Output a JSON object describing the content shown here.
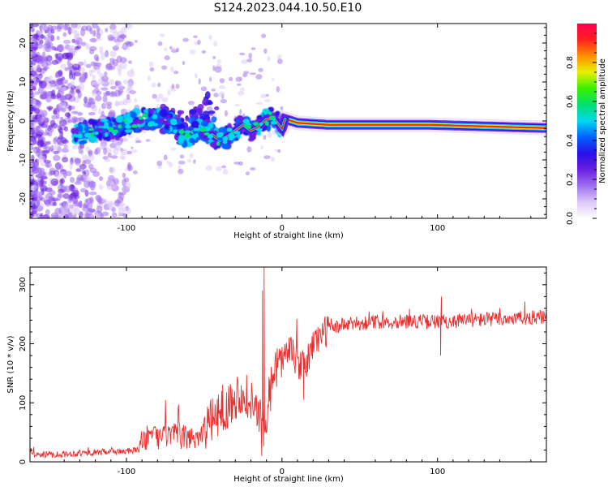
{
  "title": "S124.2023.044.10.50.E10",
  "chart_data": [
    {
      "type": "heatmap",
      "xlabel": "Height of straight line (km)",
      "ylabel": "Frequency (Hz)",
      "xlim": [
        -162,
        170
      ],
      "ylim": [
        -25,
        25
      ],
      "xticks": [
        -100,
        0,
        100
      ],
      "yticks": [
        -20,
        -10,
        0,
        10,
        20
      ],
      "colorbar": {
        "label": "Normalized spectral amplitude",
        "range": [
          0,
          1
        ],
        "ticks": [
          0.0,
          0.2,
          0.4,
          0.6,
          0.8
        ],
        "colors": [
          "#ffffff",
          "#dcc8f8",
          "#a070f0",
          "#6a1fe0",
          "#2a10e8",
          "#0060ff",
          "#00d8f0",
          "#00e070",
          "#38f000",
          "#e8f000",
          "#ff9000",
          "#ff2020",
          "#ff0050"
        ]
      },
      "ridge": [
        {
          "x": -133,
          "y": -3.5
        },
        {
          "x": -120,
          "y": -2.5
        },
        {
          "x": -110,
          "y": -2.0
        },
        {
          "x": -100,
          "y": -1.0
        },
        {
          "x": -90,
          "y": 0.5
        },
        {
          "x": -80,
          "y": 0.5
        },
        {
          "x": -70,
          "y": -1.0
        },
        {
          "x": -62,
          "y": -4.5
        },
        {
          "x": -50,
          "y": -2.0
        },
        {
          "x": -40,
          "y": -5.0
        },
        {
          "x": -35,
          "y": -4.0
        },
        {
          "x": -30,
          "y": -2.5
        },
        {
          "x": -25,
          "y": -1.0
        },
        {
          "x": -20,
          "y": -2.5
        },
        {
          "x": -15,
          "y": -1.5
        },
        {
          "x": -10,
          "y": 0.5
        },
        {
          "x": -5,
          "y": 0.5
        },
        {
          "x": 0,
          "y": -2.0
        },
        {
          "x": 2,
          "y": 0.5
        },
        {
          "x": 10,
          "y": -0.5
        },
        {
          "x": 30,
          "y": -1.0
        },
        {
          "x": 60,
          "y": -1.0
        },
        {
          "x": 95,
          "y": -1.0
        },
        {
          "x": 140,
          "y": -1.5
        },
        {
          "x": 168,
          "y": -1.8
        }
      ]
    },
    {
      "type": "line",
      "xlabel": "Height of straight line (km)",
      "ylabel": "SNR (10 * v/v)",
      "xlim": [
        -162,
        170
      ],
      "ylim": [
        0,
        330
      ],
      "xticks": [
        -100,
        0,
        100
      ],
      "yticks": [
        0,
        100,
        200,
        300
      ],
      "color": "#e83030",
      "envelope": [
        {
          "x": -162,
          "y": 12
        },
        {
          "x": -140,
          "y": 13
        },
        {
          "x": -120,
          "y": 16
        },
        {
          "x": -100,
          "y": 18
        },
        {
          "x": -92,
          "y": 20
        },
        {
          "x": -90,
          "y": 40
        },
        {
          "x": -80,
          "y": 42
        },
        {
          "x": -70,
          "y": 45
        },
        {
          "x": -60,
          "y": 40
        },
        {
          "x": -55,
          "y": 42
        },
        {
          "x": -50,
          "y": 55
        },
        {
          "x": -45,
          "y": 70
        },
        {
          "x": -40,
          "y": 85
        },
        {
          "x": -35,
          "y": 95
        },
        {
          "x": -30,
          "y": 110
        },
        {
          "x": -25,
          "y": 120
        },
        {
          "x": -20,
          "y": 100
        },
        {
          "x": -15,
          "y": 80
        },
        {
          "x": -12,
          "y": 60
        },
        {
          "x": -8,
          "y": 110
        },
        {
          "x": -5,
          "y": 160
        },
        {
          "x": 0,
          "y": 175
        },
        {
          "x": 5,
          "y": 190
        },
        {
          "x": 10,
          "y": 165
        },
        {
          "x": 15,
          "y": 160
        },
        {
          "x": 20,
          "y": 200
        },
        {
          "x": 25,
          "y": 215
        },
        {
          "x": 30,
          "y": 225
        },
        {
          "x": 40,
          "y": 232
        },
        {
          "x": 60,
          "y": 237
        },
        {
          "x": 80,
          "y": 238
        },
        {
          "x": 100,
          "y": 237
        },
        {
          "x": 120,
          "y": 240
        },
        {
          "x": 140,
          "y": 242
        },
        {
          "x": 170,
          "y": 245
        }
      ],
      "spikes": [
        {
          "x": -11.5,
          "y": 330
        },
        {
          "x": -12.5,
          "y": 290
        },
        {
          "x": -13,
          "y": 10
        },
        {
          "x": 102,
          "y": 180
        },
        {
          "x": 102.5,
          "y": 280
        },
        {
          "x": 14,
          "y": 105
        }
      ]
    }
  ]
}
